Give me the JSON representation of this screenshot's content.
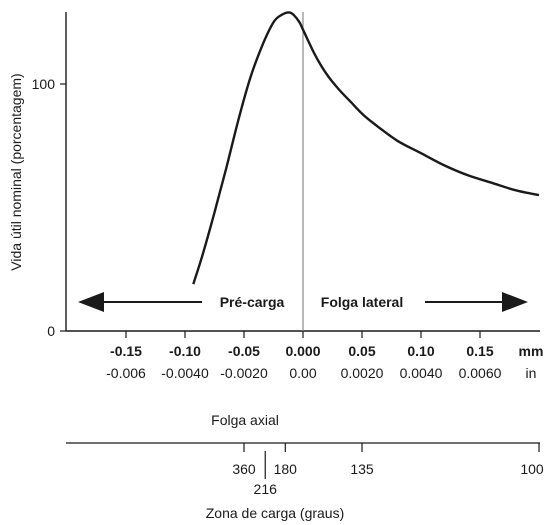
{
  "chart_data": {
    "type": "line",
    "ylabel": "Vida útil nominal (porcentagem)",
    "yticks": [
      {
        "value": 0,
        "label": "0"
      },
      {
        "value": 100,
        "label": "100"
      }
    ],
    "ylim": [
      0,
      128
    ],
    "xlim": [
      -0.2,
      0.205
    ],
    "x_mm_ticks": [
      {
        "value": -0.15,
        "label": "-0.15"
      },
      {
        "value": -0.1,
        "label": "-0.10"
      },
      {
        "value": -0.05,
        "label": "-0.05"
      },
      {
        "value": 0.0,
        "label": "0.000"
      },
      {
        "value": 0.05,
        "label": "0.05"
      },
      {
        "value": 0.1,
        "label": "0.10"
      },
      {
        "value": 0.15,
        "label": "0.15"
      }
    ],
    "x_in_ticks": [
      "-0.006",
      "-0.0040",
      "-0.0020",
      "0.00",
      "0.0020",
      "0.0040",
      "0.0060"
    ],
    "mm_unit": "mm",
    "in_unit": "in",
    "xlabel": "Folga axial",
    "series": [
      {
        "x": [
          -0.093,
          -0.085,
          -0.075,
          -0.065,
          -0.055,
          -0.045,
          -0.035,
          -0.025,
          -0.018,
          -0.012,
          -0.008,
          -0.003,
          0.0,
          0.01,
          0.02,
          0.03,
          0.04,
          0.05,
          0.06,
          0.08,
          0.1,
          0.12,
          0.14,
          0.16,
          0.18,
          0.2
        ],
        "y": [
          19,
          31,
          48,
          66,
          85,
          102,
          115,
          125,
          128,
          129,
          128,
          125,
          122,
          112,
          104,
          98,
          93,
          88,
          84,
          77,
          72,
          67,
          63,
          60,
          57,
          55
        ]
      }
    ],
    "arrow_left_label": "Pré-carga",
    "arrow_right_label": "Folga lateral",
    "load_zone_label": "Zona de carga (graus)",
    "load_zone_ticks": [
      {
        "x": -0.05,
        "label": "360"
      },
      {
        "x": -0.015,
        "label": "180"
      },
      {
        "x": 0.05,
        "label": "135"
      },
      {
        "x": 0.205,
        "label": "100"
      }
    ],
    "load_zone_sub_tick": {
      "x": -0.032,
      "label": "216"
    },
    "grid": false
  }
}
